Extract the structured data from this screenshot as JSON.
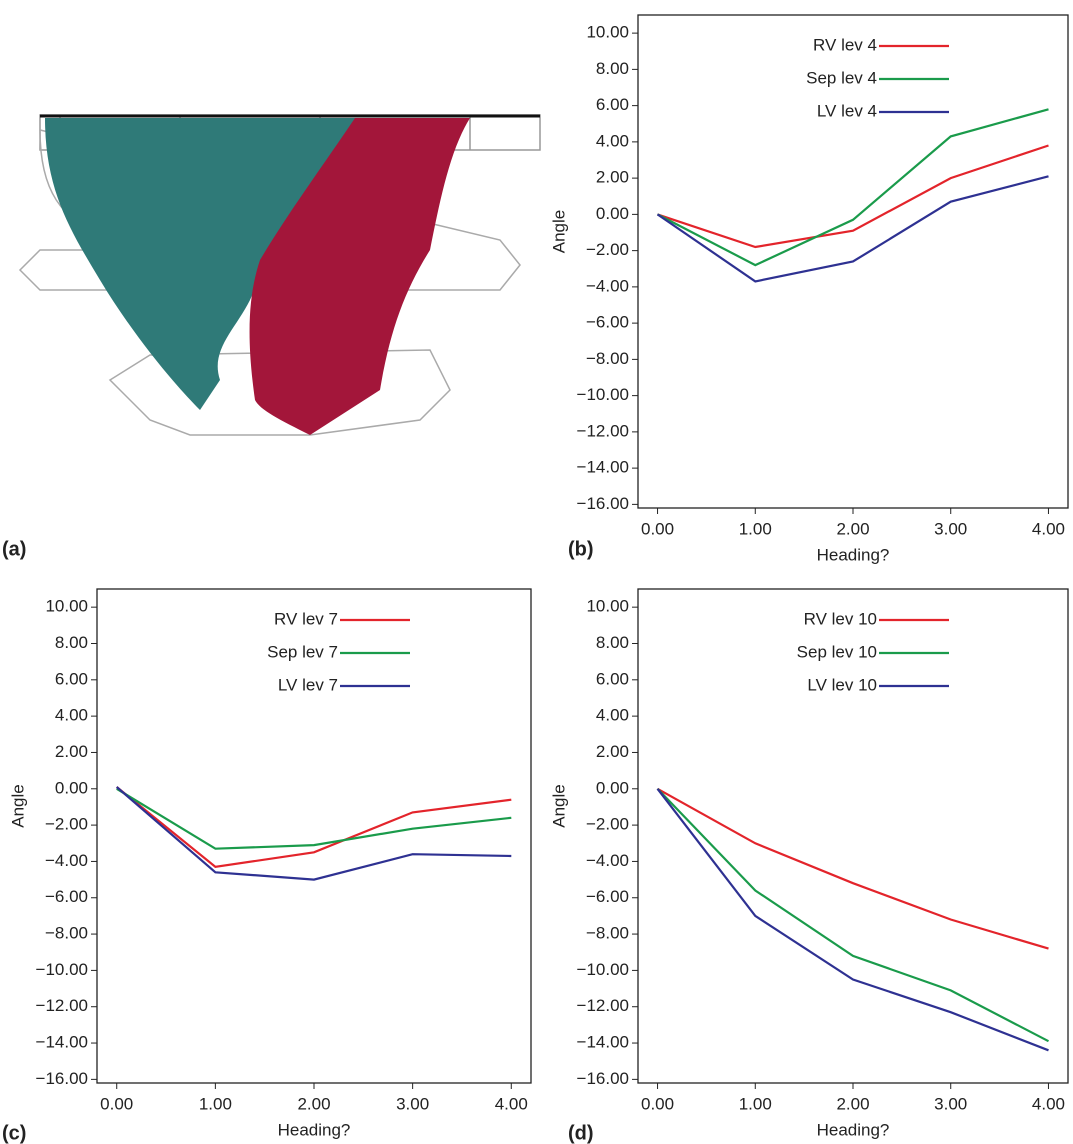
{
  "image_panel": {
    "label": "(a)"
  },
  "chart_data": [
    {
      "type": "line",
      "panel_label": "(b)",
      "xlabel": "Heading?",
      "ylabel": "Angle",
      "x": [
        0,
        1,
        2,
        3,
        4
      ],
      "xlim": [
        -0.2,
        4.2
      ],
      "ylim": [
        -16.2,
        11
      ],
      "xticks": [
        {
          "value": 0,
          "label": "0.00"
        },
        {
          "value": 1,
          "label": "1.00"
        },
        {
          "value": 2,
          "label": "2.00"
        },
        {
          "value": 3,
          "label": "3.00"
        },
        {
          "value": 4,
          "label": "4.00"
        }
      ],
      "yticks": [
        {
          "value": 10,
          "label": "10.00"
        },
        {
          "value": 8,
          "label": "8.00"
        },
        {
          "value": 6,
          "label": "6.00"
        },
        {
          "value": 4,
          "label": "4.00"
        },
        {
          "value": 2,
          "label": "2.00"
        },
        {
          "value": 0,
          "label": "0.00"
        },
        {
          "value": -2,
          "label": "−2.00"
        },
        {
          "value": -4,
          "label": "−4.00"
        },
        {
          "value": -6,
          "label": "−6.00"
        },
        {
          "value": -8,
          "label": "−8.00"
        },
        {
          "value": -10,
          "label": "−10.00"
        },
        {
          "value": -12,
          "label": "−12.00"
        },
        {
          "value": -14,
          "label": "−14.00"
        },
        {
          "value": -16,
          "label": "−16.00"
        }
      ],
      "series": [
        {
          "name": "RV lev 4",
          "color": "#e3242b",
          "values": [
            0,
            -1.8,
            -0.9,
            2.0,
            3.8
          ]
        },
        {
          "name": "Sep lev 4",
          "color": "#1a9b4b",
          "values": [
            0,
            -2.8,
            -0.3,
            4.3,
            5.8
          ]
        },
        {
          "name": "LV lev 4",
          "color": "#2e3192",
          "values": [
            0,
            -3.7,
            -2.6,
            0.7,
            2.1
          ]
        }
      ]
    },
    {
      "type": "line",
      "panel_label": "(c)",
      "xlabel": "Heading?",
      "ylabel": "Angle",
      "x": [
        0,
        1,
        2,
        3,
        4
      ],
      "xlim": [
        -0.2,
        4.2
      ],
      "ylim": [
        -16.2,
        11
      ],
      "xticks": [
        {
          "value": 0,
          "label": "0.00"
        },
        {
          "value": 1,
          "label": "1.00"
        },
        {
          "value": 2,
          "label": "2.00"
        },
        {
          "value": 3,
          "label": "3.00"
        },
        {
          "value": 4,
          "label": "4.00"
        }
      ],
      "yticks": [
        {
          "value": 10,
          "label": "10.00"
        },
        {
          "value": 8,
          "label": "8.00"
        },
        {
          "value": 6,
          "label": "6.00"
        },
        {
          "value": 4,
          "label": "4.00"
        },
        {
          "value": 2,
          "label": "2.00"
        },
        {
          "value": 0,
          "label": "0.00"
        },
        {
          "value": -2,
          "label": "−2.00"
        },
        {
          "value": -4,
          "label": "−4.00"
        },
        {
          "value": -6,
          "label": "−6.00"
        },
        {
          "value": -8,
          "label": "−8.00"
        },
        {
          "value": -10,
          "label": "−10.00"
        },
        {
          "value": -12,
          "label": "−12.00"
        },
        {
          "value": -14,
          "label": "−14.00"
        },
        {
          "value": -16,
          "label": "−16.00"
        }
      ],
      "series": [
        {
          "name": "RV lev 7",
          "color": "#e3242b",
          "values": [
            0.1,
            -4.3,
            -3.5,
            -1.3,
            -0.6
          ]
        },
        {
          "name": "Sep lev 7",
          "color": "#1a9b4b",
          "values": [
            0,
            -3.3,
            -3.1,
            -2.2,
            -1.6
          ]
        },
        {
          "name": "LV lev 7",
          "color": "#2e3192",
          "values": [
            0.1,
            -4.6,
            -5.0,
            -3.6,
            -3.7
          ]
        }
      ]
    },
    {
      "type": "line",
      "panel_label": "(d)",
      "xlabel": "Heading?",
      "ylabel": "Angle",
      "x": [
        0,
        1,
        2,
        3,
        4
      ],
      "xlim": [
        -0.2,
        4.2
      ],
      "ylim": [
        -16.2,
        11
      ],
      "xticks": [
        {
          "value": 0,
          "label": "0.00"
        },
        {
          "value": 1,
          "label": "1.00"
        },
        {
          "value": 2,
          "label": "2.00"
        },
        {
          "value": 3,
          "label": "3.00"
        },
        {
          "value": 4,
          "label": "4.00"
        }
      ],
      "yticks": [
        {
          "value": 10,
          "label": "10.00"
        },
        {
          "value": 8,
          "label": "8.00"
        },
        {
          "value": 6,
          "label": "6.00"
        },
        {
          "value": 4,
          "label": "4.00"
        },
        {
          "value": 2,
          "label": "2.00"
        },
        {
          "value": 0,
          "label": "0.00"
        },
        {
          "value": -2,
          "label": "−2.00"
        },
        {
          "value": -4,
          "label": "−4.00"
        },
        {
          "value": -6,
          "label": "−6.00"
        },
        {
          "value": -8,
          "label": "−8.00"
        },
        {
          "value": -10,
          "label": "−10.00"
        },
        {
          "value": -12,
          "label": "−12.00"
        },
        {
          "value": -14,
          "label": "−14.00"
        },
        {
          "value": -16,
          "label": "−16.00"
        }
      ],
      "series": [
        {
          "name": "RV lev 10",
          "color": "#e3242b",
          "values": [
            0,
            -3.0,
            -5.2,
            -7.2,
            -8.8
          ]
        },
        {
          "name": "Sep lev 10",
          "color": "#1a9b4b",
          "values": [
            0,
            -5.6,
            -9.2,
            -11.1,
            -13.9
          ]
        },
        {
          "name": "LV lev 10",
          "color": "#2e3192",
          "values": [
            0,
            -7.0,
            -10.5,
            -12.3,
            -14.4
          ]
        }
      ]
    }
  ]
}
